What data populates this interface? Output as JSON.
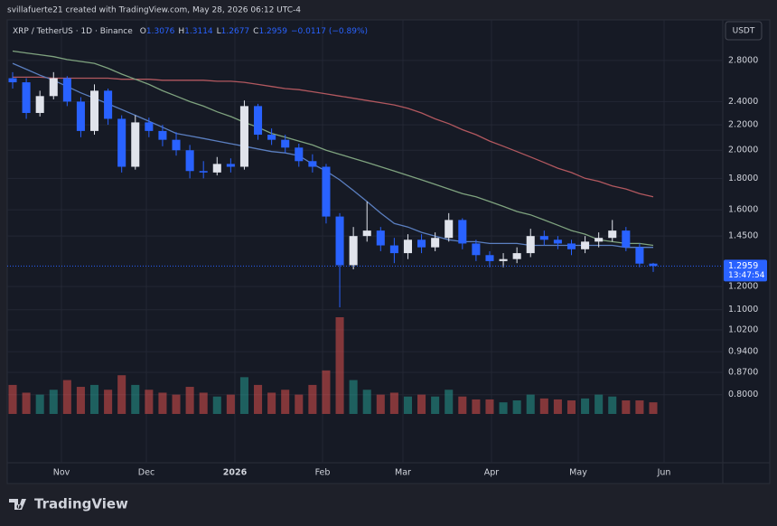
{
  "header": {
    "credit": "svillafuerte21 created with TradingView.com, May 28, 2026 06:12 UTC-4"
  },
  "footer": {
    "brand": "TradingView"
  },
  "chart_data": {
    "type": "candlestick",
    "title": "XRP / TetherUS · 1D · Binance",
    "ohlc_keys": [
      "O",
      "H",
      "L",
      "C"
    ],
    "change": "−0.0117 (−0.89%)",
    "currency": "USDT",
    "countdown": "13:47:54",
    "x_labels": [
      "Nov",
      "Dec",
      "2026",
      "Feb",
      "Mar",
      "Apr",
      "May",
      "Jun"
    ],
    "log_scale": true,
    "grid": true,
    "ylim": [
      0.62,
      3.26
    ],
    "yticks": [
      {
        "value": 2.8,
        "label": "2.8000"
      },
      {
        "value": 2.4,
        "label": "2.4000"
      },
      {
        "value": 2.2,
        "label": "2.2000"
      },
      {
        "value": 2.0,
        "label": "2.0000"
      },
      {
        "value": 1.8,
        "label": "1.8000"
      },
      {
        "value": 1.6,
        "label": "1.6000"
      },
      {
        "value": 1.45,
        "label": "1.4500"
      },
      {
        "value": 1.2,
        "label": "1.2000"
      },
      {
        "value": 1.1,
        "label": "1.1000"
      },
      {
        "value": 1.02,
        "label": "1.0200"
      },
      {
        "value": 0.94,
        "label": "0.9400"
      },
      {
        "value": 0.87,
        "label": "0.8700"
      },
      {
        "value": 0.8,
        "label": "0.8000"
      }
    ],
    "up_color": "#e0e3eb",
    "down_color": "#2962ff",
    "volume_up_color": "#26a69a",
    "volume_down_color": "#ef5350",
    "open": [
      2.62,
      2.58,
      2.3,
      2.45,
      2.62,
      2.4,
      2.15,
      2.5,
      2.25,
      1.88,
      2.22,
      2.15,
      2.08,
      2.0,
      1.85,
      1.84,
      1.9,
      1.88,
      2.36,
      2.12,
      2.08,
      2.02,
      1.92,
      1.88,
      1.56,
      1.3,
      1.45,
      1.48,
      1.4,
      1.36,
      1.43,
      1.39,
      1.44,
      1.54,
      1.41,
      1.35,
      1.32,
      1.33,
      1.36,
      1.45,
      1.43,
      1.41,
      1.38,
      1.42,
      1.44,
      1.48,
      1.39,
      1.3076
    ],
    "high": [
      2.68,
      2.62,
      2.5,
      2.68,
      2.64,
      2.44,
      2.56,
      2.52,
      2.28,
      2.28,
      2.26,
      2.2,
      2.14,
      2.04,
      1.92,
      1.95,
      1.94,
      2.41,
      2.38,
      2.17,
      2.12,
      2.05,
      1.97,
      1.9,
      1.58,
      1.5,
      1.65,
      1.5,
      1.44,
      1.46,
      1.46,
      1.47,
      1.58,
      1.55,
      1.43,
      1.37,
      1.36,
      1.39,
      1.49,
      1.48,
      1.45,
      1.43,
      1.45,
      1.47,
      1.54,
      1.5,
      1.41,
      1.3114
    ],
    "low": [
      2.52,
      2.25,
      2.27,
      2.42,
      2.36,
      2.1,
      2.12,
      2.2,
      1.84,
      1.86,
      2.1,
      2.03,
      1.96,
      1.8,
      1.8,
      1.82,
      1.84,
      1.86,
      2.08,
      2.04,
      1.98,
      1.88,
      1.84,
      1.52,
      1.11,
      1.28,
      1.42,
      1.37,
      1.31,
      1.33,
      1.36,
      1.37,
      1.42,
      1.38,
      1.32,
      1.29,
      1.29,
      1.31,
      1.34,
      1.4,
      1.38,
      1.35,
      1.36,
      1.39,
      1.42,
      1.37,
      1.29,
      1.2677
    ],
    "close": [
      2.58,
      2.3,
      2.45,
      2.62,
      2.4,
      2.15,
      2.5,
      2.25,
      1.88,
      2.22,
      2.15,
      2.08,
      2.0,
      1.85,
      1.84,
      1.9,
      1.88,
      2.36,
      2.12,
      2.08,
      2.02,
      1.92,
      1.88,
      1.56,
      1.3,
      1.45,
      1.48,
      1.4,
      1.36,
      1.43,
      1.39,
      1.44,
      1.54,
      1.41,
      1.35,
      1.32,
      1.33,
      1.36,
      1.45,
      1.43,
      1.41,
      1.38,
      1.42,
      1.44,
      1.48,
      1.39,
      1.3076,
      1.2959
    ],
    "volume": [
      30,
      22,
      20,
      25,
      35,
      28,
      30,
      25,
      40,
      30,
      25,
      22,
      20,
      28,
      22,
      18,
      20,
      38,
      30,
      22,
      25,
      20,
      30,
      45,
      100,
      35,
      25,
      20,
      22,
      18,
      20,
      18,
      25,
      18,
      15,
      15,
      12,
      14,
      20,
      16,
      15,
      14,
      16,
      20,
      18,
      14,
      14,
      12
    ],
    "series": [
      {
        "color": "#b2585f",
        "values": [
          2.63,
          2.63,
          2.63,
          2.62,
          2.62,
          2.62,
          2.62,
          2.62,
          2.61,
          2.61,
          2.61,
          2.6,
          2.6,
          2.6,
          2.6,
          2.59,
          2.59,
          2.58,
          2.56,
          2.54,
          2.52,
          2.51,
          2.49,
          2.47,
          2.45,
          2.43,
          2.41,
          2.39,
          2.37,
          2.34,
          2.3,
          2.25,
          2.21,
          2.16,
          2.12,
          2.07,
          2.03,
          1.99,
          1.95,
          1.91,
          1.87,
          1.84,
          1.8,
          1.78,
          1.75,
          1.73,
          1.7,
          1.68
        ]
      },
      {
        "color": "#7fa37f",
        "values": [
          2.9,
          2.88,
          2.86,
          2.84,
          2.81,
          2.79,
          2.77,
          2.72,
          2.66,
          2.61,
          2.56,
          2.5,
          2.45,
          2.4,
          2.36,
          2.31,
          2.27,
          2.22,
          2.18,
          2.13,
          2.1,
          2.07,
          2.04,
          2.0,
          1.97,
          1.94,
          1.91,
          1.88,
          1.85,
          1.82,
          1.79,
          1.76,
          1.73,
          1.7,
          1.68,
          1.65,
          1.62,
          1.59,
          1.57,
          1.54,
          1.51,
          1.48,
          1.46,
          1.43,
          1.42,
          1.41,
          1.41,
          1.4
        ]
      },
      {
        "color": "#5b7fc0",
        "values": [
          2.77,
          2.71,
          2.65,
          2.6,
          2.54,
          2.48,
          2.43,
          2.38,
          2.33,
          2.28,
          2.23,
          2.18,
          2.13,
          2.11,
          2.09,
          2.07,
          2.05,
          2.03,
          2.01,
          1.99,
          1.98,
          1.96,
          1.9,
          1.85,
          1.79,
          1.72,
          1.65,
          1.58,
          1.52,
          1.5,
          1.47,
          1.45,
          1.43,
          1.42,
          1.42,
          1.41,
          1.41,
          1.41,
          1.4,
          1.4,
          1.4,
          1.4,
          1.4,
          1.4,
          1.4,
          1.39,
          1.39,
          1.39
        ]
      }
    ]
  }
}
